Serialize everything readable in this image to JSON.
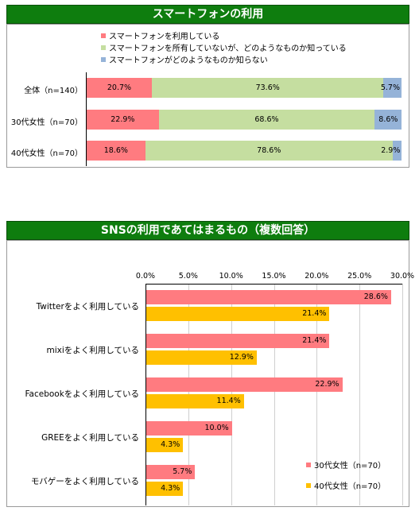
{
  "charts": [
    {
      "title": "スマートフォンの利用",
      "chart_data": {
        "type": "bar",
        "stacked": true,
        "orientation": "horizontal",
        "categories": [
          "全体（n=140）",
          "30代女性（n=70）",
          "40代女性（n=70）"
        ],
        "series": [
          {
            "name": "スマートフォンを利用している",
            "color": "#ff7b80",
            "values": [
              20.7,
              22.9,
              18.6
            ],
            "labels": [
              "20.7%",
              "22.9%",
              "18.6%"
            ]
          },
          {
            "name": "スマートフォンを所有していないが、どのようなものか知っている",
            "color": "#c5dea0",
            "values": [
              73.6,
              68.6,
              78.6
            ],
            "labels": [
              "73.6%",
              "68.6%",
              "78.6%"
            ]
          },
          {
            "name": "スマートフォンがどのようなものか知らない",
            "color": "#95b3d8",
            "values": [
              5.7,
              8.6,
              2.9
            ],
            "labels": [
              "5.7%",
              "8.6%",
              "2.9%"
            ]
          }
        ],
        "xlim": [
          0,
          100
        ],
        "legend": "top"
      }
    },
    {
      "title": "SNSの利用であてはまるもの（複数回答）",
      "chart_data": {
        "type": "bar",
        "orientation": "horizontal",
        "categories": [
          "Twitterをよく利用している",
          "mixiをよく利用している",
          "Facebookをよく利用している",
          "GREEをよく利用している",
          "モバゲーをよく利用している"
        ],
        "series": [
          {
            "name": "30代女性（n=70）",
            "color": "#ff7b80",
            "values": [
              28.6,
              21.4,
              22.9,
              10.0,
              5.7
            ],
            "labels": [
              "28.6%",
              "21.4%",
              "22.9%",
              "10.0%",
              "5.7%"
            ]
          },
          {
            "name": "40代女性（n=70）",
            "color": "#ffc000",
            "values": [
              21.4,
              12.9,
              11.4,
              4.3,
              4.3
            ],
            "labels": [
              "21.4%",
              "12.9%",
              "11.4%",
              "4.3%",
              "4.3%"
            ]
          }
        ],
        "xlim": [
          0,
          30
        ],
        "xticks": [
          "0.0%",
          "5.0%",
          "10.0%",
          "15.0%",
          "20.0%",
          "25.0%",
          "30.0%"
        ],
        "grid": true,
        "legend": "bottom-right"
      }
    }
  ]
}
